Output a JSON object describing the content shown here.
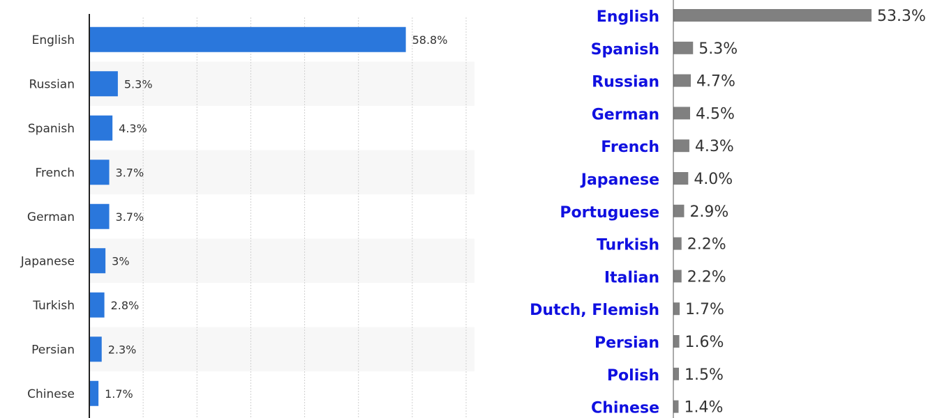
{
  "chart_data": [
    {
      "type": "bar",
      "orientation": "horizontal",
      "categories": [
        "English",
        "Russian",
        "Spanish",
        "French",
        "German",
        "Japanese",
        "Turkish",
        "Persian",
        "Chinese"
      ],
      "values": [
        58.8,
        5.3,
        4.3,
        3.7,
        3.7,
        3,
        2.8,
        2.3,
        1.7
      ],
      "value_labels": [
        "58.8%",
        "5.3%",
        "4.3%",
        "3.7%",
        "3.7%",
        "3%",
        "2.8%",
        "2.3%",
        "1.7%"
      ],
      "xlim": [
        0,
        70
      ],
      "grid": true,
      "colors": {
        "bar": "#2a77dc",
        "stripe": "#f7f7f7",
        "grid": "#cfcfcf"
      }
    },
    {
      "type": "bar",
      "orientation": "horizontal",
      "categories": [
        "English",
        "Spanish",
        "Russian",
        "German",
        "French",
        "Japanese",
        "Portuguese",
        "Turkish",
        "Italian",
        "Dutch, Flemish",
        "Persian",
        "Polish",
        "Chinese"
      ],
      "values": [
        53.3,
        5.3,
        4.7,
        4.5,
        4.3,
        4.0,
        2.9,
        2.2,
        2.2,
        1.7,
        1.6,
        1.5,
        1.4
      ],
      "value_labels": [
        "53.3%",
        "5.3%",
        "4.7%",
        "4.5%",
        "4.3%",
        "4.0%",
        "2.9%",
        "2.2%",
        "2.2%",
        "1.7%",
        "1.6%",
        "1.5%",
        "1.4%"
      ],
      "xlim": [
        0,
        53.3
      ],
      "grid": false,
      "colors": {
        "bar": "#808080",
        "label": "#1010e0"
      }
    }
  ]
}
